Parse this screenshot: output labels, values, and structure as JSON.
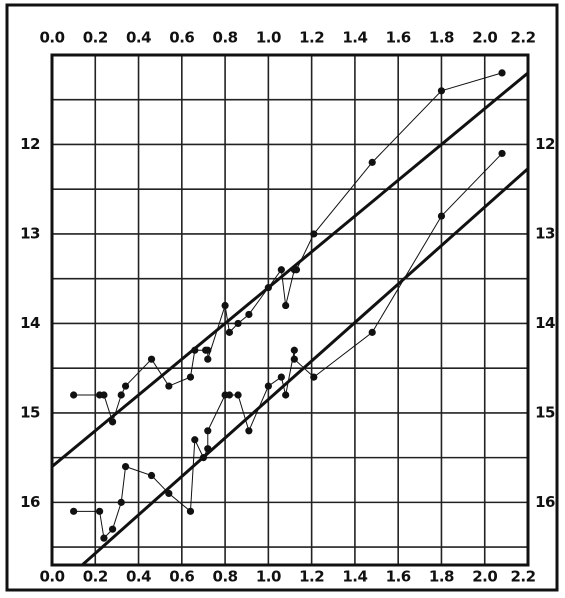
{
  "chart_data": {
    "type": "line",
    "xlim": [
      0,
      2.2
    ],
    "ylim": [
      11,
      16.7
    ],
    "y_inverted": true,
    "grid": true,
    "color": "#111111",
    "xticks": [
      {
        "value": 0,
        "label": "0.0"
      },
      0.2,
      0.4,
      0.6,
      0.8,
      {
        "value": 1,
        "label": "1.0"
      },
      1.2,
      1.4,
      1.6,
      1.8,
      {
        "value": 2,
        "label": "2.0"
      },
      2.2
    ],
    "yticks": [
      12,
      13,
      14,
      15,
      16
    ],
    "ygrid": [
      11.5,
      12,
      12.5,
      13,
      13.5,
      14,
      14.5,
      15,
      15.5,
      16,
      16.5
    ],
    "series": [
      {
        "markers": true,
        "line_width": 1,
        "x": [
          0.1,
          0.22,
          0.24,
          0.28,
          0.32,
          0.34,
          0.46,
          0.54,
          0.64,
          0.66,
          0.71,
          0.72,
          0.72,
          0.8,
          0.82,
          0.86,
          0.91,
          1.0,
          1.06,
          1.08,
          1.12,
          1.13,
          1.21,
          1.48,
          1.8,
          2.08
        ],
        "values": [
          14.8,
          14.8,
          14.8,
          15.1,
          14.8,
          14.7,
          14.4,
          14.7,
          14.6,
          14.3,
          14.3,
          14.3,
          14.4,
          13.8,
          14.1,
          14.0,
          13.9,
          13.6,
          13.4,
          13.8,
          13.4,
          13.4,
          13.0,
          12.2,
          11.4,
          11.2
        ]
      },
      {
        "markers": true,
        "line_width": 1,
        "x": [
          0.1,
          0.22,
          0.24,
          0.28,
          0.32,
          0.34,
          0.46,
          0.54,
          0.64,
          0.66,
          0.7,
          0.72,
          0.72,
          0.8,
          0.82,
          0.86,
          0.91,
          1.0,
          1.06,
          1.08,
          1.12,
          1.12,
          1.21,
          1.48,
          1.8,
          2.08
        ],
        "values": [
          16.1,
          16.1,
          16.4,
          16.3,
          16.0,
          15.6,
          15.7,
          15.9,
          16.1,
          15.3,
          15.5,
          15.4,
          15.2,
          14.8,
          14.8,
          14.8,
          15.2,
          14.7,
          14.6,
          14.8,
          14.3,
          14.4,
          14.6,
          14.1,
          12.8,
          12.1
        ]
      },
      {
        "markers": false,
        "line_width": 3,
        "x": [
          0,
          2.2
        ],
        "values": [
          15.6,
          11.2
        ]
      },
      {
        "markers": false,
        "line_width": 3,
        "x": [
          0,
          2.2
        ],
        "values": [
          17.0,
          12.27
        ]
      }
    ]
  }
}
